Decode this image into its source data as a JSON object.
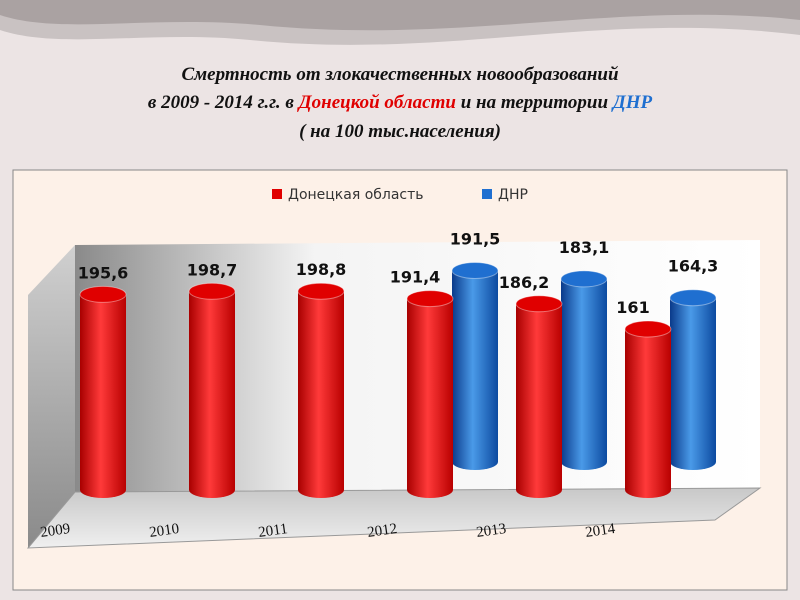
{
  "chart_data": {
    "type": "bar3d",
    "title": {
      "line1": "Смертность  от злокачественных  новообразований",
      "line2a": "в 2009 - 2014 г.г. в",
      "line2b": "Донецкой  области",
      "line2c": "и на территории",
      "line2d": "ДНР",
      "line3": "( на 100 тыс.населения)"
    },
    "categories": [
      "2009",
      "2010",
      "2011",
      "2012",
      "2013",
      "2014"
    ],
    "series": [
      {
        "name": "Донецкая область",
        "color": "#e00000",
        "values": [
          195.6,
          198.7,
          198.8,
          191.4,
          186.2,
          161
        ],
        "value_labels": [
          "195,6",
          "198,7",
          "198,8",
          "191,4",
          "186,2",
          "161"
        ]
      },
      {
        "name": "ДНР",
        "color": "#1f6fd0",
        "values": [
          null,
          null,
          null,
          191.5,
          183.1,
          164.3
        ],
        "value_labels": [
          null,
          null,
          null,
          "191,5",
          "183,1",
          "164,3"
        ]
      }
    ]
  }
}
